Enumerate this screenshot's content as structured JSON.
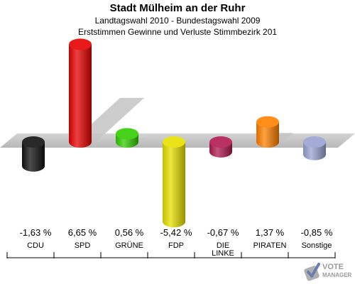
{
  "title": "Stadt Mülheim an der Ruhr",
  "subtitle1": "Landtagswahl 2010 - Bundestagswahl 2009",
  "subtitle2": "Erststimmen Gewinne und Verluste Stimmbezirk 201",
  "logo": {
    "text": "VOTE",
    "sub": "MANAGER",
    "icon": "check-ballot-icon"
  },
  "chart_data": {
    "type": "bar",
    "categories": [
      "CDU",
      "SPD",
      "GRÜNE",
      "FDP",
      "DIE LINKE",
      "PIRATEN",
      "Sonstige"
    ],
    "category_lines": [
      [
        "CDU"
      ],
      [
        "SPD"
      ],
      [
        "GRÜNE"
      ],
      [
        "FDP"
      ],
      [
        "DIE",
        "LINKE"
      ],
      [
        "PIRATEN"
      ],
      [
        "Sonstige"
      ]
    ],
    "values": [
      -1.63,
      6.65,
      0.56,
      -5.42,
      -0.67,
      1.37,
      -0.85
    ],
    "value_labels": [
      "-1,63 %",
      "6,65 %",
      "0,56 %",
      "-5,42 %",
      "-0,67 %",
      "1,37 %",
      "-0,85 %"
    ],
    "colors": [
      "#111111",
      "#e60000",
      "#33cc00",
      "#e8e000",
      "#b01a4e",
      "#ff8000",
      "#99a3d1"
    ],
    "ylim": [
      -6,
      7
    ],
    "grid": false,
    "legend": "none"
  }
}
